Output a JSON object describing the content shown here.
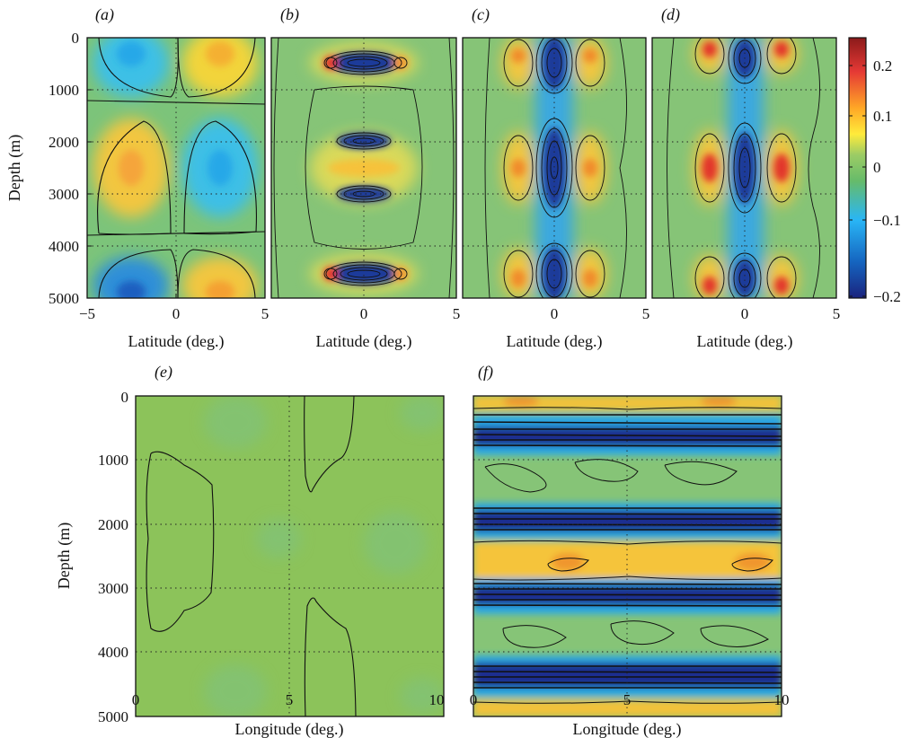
{
  "figure": {
    "panels": [
      {
        "id": "a",
        "label": "(a)",
        "xlabel": "Latitude (deg.)",
        "ylabel": "Depth (m)",
        "xticks": [
          "−5",
          "0",
          "5"
        ],
        "yticks": [
          "0",
          "1000",
          "2000",
          "3000",
          "4000",
          "5000"
        ]
      },
      {
        "id": "b",
        "label": "(b)",
        "xlabel": "Latitude (deg.)",
        "xticks": [
          "0",
          "5"
        ]
      },
      {
        "id": "c",
        "label": "(c)",
        "xlabel": "Latitude (deg.)",
        "xticks": [
          "0",
          "5"
        ]
      },
      {
        "id": "d",
        "label": "(d)",
        "xlabel": "Latitude (deg.)",
        "xticks": [
          "0",
          "5"
        ]
      },
      {
        "id": "e",
        "label": "(e)",
        "xlabel": "Longitude (deg.)",
        "ylabel": "Depth (m)",
        "xticks": [
          "0",
          "5",
          "10"
        ],
        "yticks": [
          "0",
          "1000",
          "2000",
          "3000",
          "4000",
          "5000"
        ]
      },
      {
        "id": "f",
        "label": "(f)",
        "xlabel": "Longitude (deg.)",
        "xticks": [
          "0",
          "5",
          "10"
        ]
      }
    ],
    "colorbar": {
      "ticks": [
        "0.2",
        "0.1",
        "0",
        "−0.1",
        "−0.2"
      ],
      "colormap": [
        "#1a237e",
        "#1565c0",
        "#29b6f6",
        "#66bb6a",
        "#9ccc65",
        "#ffeb3b",
        "#ffa726",
        "#e53935",
        "#8b1a1a"
      ]
    }
  },
  "chart_data": [
    {
      "type": "heatmap",
      "panel": "a",
      "x_range": [
        -5,
        5
      ],
      "y_range": [
        0,
        5000
      ],
      "xlabel": "Latitude (deg.)",
      "ylabel": "Depth (m)",
      "grid": true,
      "reversed_y": true,
      "features": [
        {
          "x": -2.5,
          "y": 250,
          "value": -0.1
        },
        {
          "x": 2.5,
          "y": 250,
          "value": 0.08
        },
        {
          "x": -2.5,
          "y": 2500,
          "value": 0.1
        },
        {
          "x": 2.5,
          "y": 2500,
          "value": -0.1
        },
        {
          "x": -2.5,
          "y": 4800,
          "value": -0.12
        },
        {
          "x": 2.5,
          "y": 4800,
          "value": 0.1
        }
      ]
    },
    {
      "type": "heatmap",
      "panel": "b",
      "x_range": [
        -5,
        5
      ],
      "y_range": [
        0,
        5000
      ],
      "xlabel": "Latitude (deg.)",
      "grid": true,
      "reversed_y": true,
      "features": [
        {
          "x": 0,
          "y": 500,
          "value": -0.2
        },
        {
          "x": 0,
          "y": 2000,
          "value": -0.15
        },
        {
          "x": 0,
          "y": 2500,
          "value": 0.08
        },
        {
          "x": 0,
          "y": 3000,
          "value": -0.15
        },
        {
          "x": 0,
          "y": 4500,
          "value": -0.2
        }
      ]
    },
    {
      "type": "heatmap",
      "panel": "c",
      "x_range": [
        -5,
        5
      ],
      "y_range": [
        0,
        5000
      ],
      "xlabel": "Latitude (deg.)",
      "grid": true,
      "reversed_y": true,
      "features": [
        {
          "x": 0,
          "y": 500,
          "value": -0.18
        },
        {
          "x": -1.8,
          "y": 500,
          "value": 0.12
        },
        {
          "x": 1.8,
          "y": 500,
          "value": 0.12
        },
        {
          "x": 0,
          "y": 2500,
          "value": -0.2
        },
        {
          "x": -1.8,
          "y": 2500,
          "value": 0.12
        },
        {
          "x": 1.8,
          "y": 2500,
          "value": 0.12
        },
        {
          "x": 0,
          "y": 4700,
          "value": -0.18
        },
        {
          "x": -1.8,
          "y": 4700,
          "value": 0.14
        },
        {
          "x": 1.8,
          "y": 4700,
          "value": 0.14
        }
      ]
    },
    {
      "type": "heatmap",
      "panel": "d",
      "x_range": [
        -5,
        5
      ],
      "y_range": [
        0,
        5000
      ],
      "xlabel": "Latitude (deg.)",
      "grid": true,
      "reversed_y": true,
      "features": [
        {
          "x": 0,
          "y": 300,
          "value": -0.18
        },
        {
          "x": -1.8,
          "y": 300,
          "value": 0.12
        },
        {
          "x": 1.8,
          "y": 300,
          "value": 0.14
        },
        {
          "x": 0,
          "y": 2500,
          "value": -0.16
        },
        {
          "x": -1.8,
          "y": 2500,
          "value": 0.16
        },
        {
          "x": 1.8,
          "y": 2500,
          "value": 0.16
        },
        {
          "x": 0,
          "y": 4800,
          "value": -0.16
        },
        {
          "x": -1.8,
          "y": 4800,
          "value": 0.15
        },
        {
          "x": 1.8,
          "y": 4800,
          "value": 0.15
        }
      ]
    },
    {
      "type": "heatmap",
      "panel": "e",
      "x_range": [
        0,
        10
      ],
      "y_range": [
        0,
        5000
      ],
      "xlabel": "Longitude (deg.)",
      "ylabel": "Depth (m)",
      "grid": true,
      "reversed_y": true,
      "features": [
        {
          "x": 1.3,
          "y": 2500,
          "value": 0.02
        },
        {
          "x": 6.3,
          "y": 800,
          "value": 0.02
        },
        {
          "x": 6.3,
          "y": 4300,
          "value": 0.02
        }
      ]
    },
    {
      "type": "heatmap",
      "panel": "f",
      "x_range": [
        0,
        10
      ],
      "y_range": [
        0,
        5000
      ],
      "xlabel": "Longitude (deg.)",
      "grid": true,
      "reversed_y": true,
      "features": [
        {
          "x": 5,
          "y": 100,
          "value": 0.1
        },
        {
          "x": 5,
          "y": 500,
          "value": -0.2
        },
        {
          "x": 5,
          "y": 1900,
          "value": -0.2
        },
        {
          "x": 5,
          "y": 2500,
          "value": 0.12
        },
        {
          "x": 5,
          "y": 3000,
          "value": -0.2
        },
        {
          "x": 5,
          "y": 4500,
          "value": -0.2
        },
        {
          "x": 5,
          "y": 4900,
          "value": 0.1
        }
      ]
    }
  ]
}
